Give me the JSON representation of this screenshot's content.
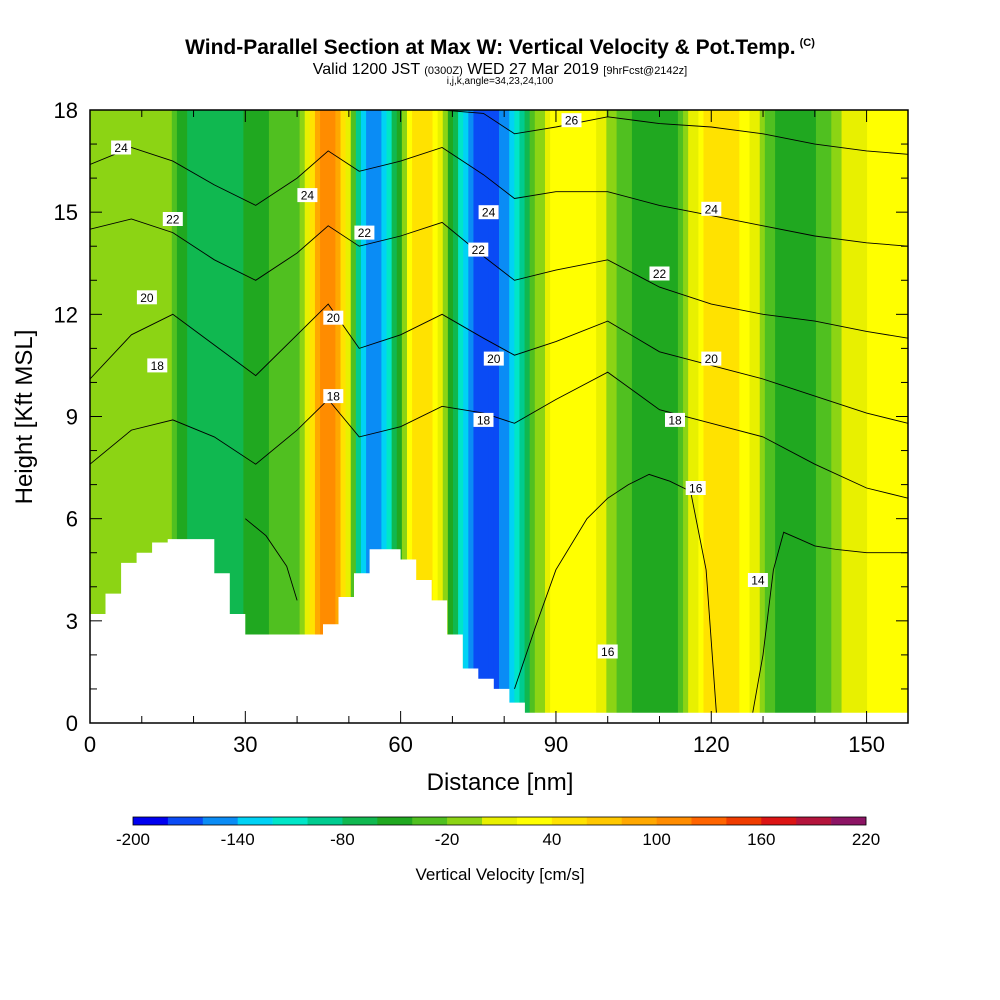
{
  "header": {
    "title": "Wind-Parallel Section at Max W: Vertical Velocity & Pot.Temp.",
    "title_tag": "(C)",
    "subtitle_valid": "Valid 1200 JST",
    "subtitle_utc": "(0300Z)",
    "subtitle_date": "WED 27 Mar 2019",
    "subtitle_fcst": "[9hrFcst@2142z]",
    "params": "i,j,k,angle=34,23,24,100"
  },
  "chart_data": {
    "type": "heatmap",
    "xlabel": "Distance [nm]",
    "ylabel": "Height [Kft MSL]",
    "xlim": [
      0,
      158
    ],
    "ylim": [
      0,
      18
    ],
    "xticks": [
      "0",
      "30",
      "60",
      "90",
      "120",
      "150"
    ],
    "yticks": [
      "0",
      "3",
      "6",
      "9",
      "12",
      "15",
      "18"
    ],
    "colorbar": {
      "label": "Vertical Velocity [cm/s]",
      "tick_labels": [
        "-200",
        "-140",
        "-80",
        "-20",
        "40",
        "100",
        "160",
        "220"
      ],
      "levels": [
        -200,
        -180,
        -160,
        -140,
        -120,
        -100,
        -80,
        -60,
        -40,
        -20,
        0,
        20,
        40,
        60,
        80,
        100,
        120,
        140,
        160,
        180,
        200,
        220
      ],
      "colors": [
        "#0000f0",
        "#0a4bf5",
        "#0a8cf5",
        "#00d2f5",
        "#00e6c8",
        "#00cc90",
        "#10b850",
        "#20a820",
        "#50c020",
        "#8cd414",
        "#e8f000",
        "#ffff00",
        "#ffe200",
        "#ffc800",
        "#ffa800",
        "#ff8c00",
        "#ff6400",
        "#f03c00",
        "#dc1414",
        "#b4143c",
        "#8c1464"
      ]
    },
    "velocity_bands": [
      {
        "x": 3,
        "w": -20
      },
      {
        "x": 12,
        "w": 0
      },
      {
        "x": 22,
        "w": -80
      },
      {
        "x": 30,
        "w": -60
      },
      {
        "x": 40,
        "w": -20
      },
      {
        "x": 46,
        "w": 120
      },
      {
        "x": 55,
        "w": -160
      },
      {
        "x": 64,
        "w": 60
      },
      {
        "x": 76,
        "w": -180
      },
      {
        "x": 92,
        "w": 40
      },
      {
        "x": 110,
        "w": -60
      },
      {
        "x": 122,
        "w": 60
      },
      {
        "x": 136,
        "w": -60
      },
      {
        "x": 150,
        "w": 20
      }
    ],
    "terrain": {
      "x": [
        0,
        3,
        6,
        9,
        12,
        15,
        18,
        21,
        24,
        27,
        30,
        33,
        36,
        39,
        42,
        45,
        48,
        51,
        54,
        57,
        60,
        63,
        66,
        69,
        72,
        75,
        78,
        81,
        84,
        87,
        90,
        95,
        100,
        110,
        120,
        130,
        140,
        150,
        158
      ],
      "height": [
        3.2,
        3.8,
        4.7,
        5.0,
        5.3,
        5.4,
        5.4,
        5.4,
        4.4,
        3.2,
        2.6,
        2.6,
        2.6,
        2.6,
        2.6,
        2.9,
        3.7,
        4.4,
        5.1,
        5.1,
        4.8,
        4.2,
        3.6,
        2.6,
        1.6,
        1.3,
        1.0,
        0.6,
        0.3,
        0.3,
        0.3,
        0.3,
        0.3,
        0.3,
        0.3,
        0.3,
        0.3,
        0.3,
        0.3
      ]
    },
    "theta_contours": [
      {
        "label": "14",
        "x": [
          128,
          130,
          132,
          134,
          137,
          140,
          144,
          150,
          158
        ],
        "height": [
          0.3,
          2.0,
          4.5,
          5.6,
          5.4,
          5.2,
          5.1,
          5.0,
          5.0
        ]
      },
      {
        "label": "16",
        "x": [
          82,
          86,
          90,
          96,
          100,
          104,
          108,
          112,
          116,
          119,
          121
        ],
        "height": [
          1.0,
          2.8,
          4.5,
          6.0,
          6.6,
          7.0,
          7.3,
          7.1,
          6.8,
          4.5,
          0.3
        ]
      },
      {
        "label": "16",
        "x": [
          30,
          34,
          38,
          40
        ],
        "height": [
          6.0,
          5.5,
          4.6,
          3.6
        ]
      },
      {
        "label": "18",
        "x": [
          0,
          8,
          16,
          24,
          32,
          40,
          46,
          52,
          60,
          68,
          76,
          82,
          90,
          100,
          110,
          120,
          130,
          140,
          150,
          158
        ],
        "height": [
          7.6,
          8.6,
          8.9,
          8.4,
          7.6,
          8.6,
          9.5,
          8.4,
          8.7,
          9.3,
          9.1,
          8.8,
          9.5,
          10.3,
          9.2,
          8.8,
          8.4,
          7.6,
          6.9,
          6.6
        ]
      },
      {
        "label": "20",
        "x": [
          0,
          8,
          16,
          24,
          32,
          40,
          46,
          52,
          60,
          68,
          76,
          82,
          90,
          100,
          110,
          120,
          130,
          140,
          150,
          158
        ],
        "height": [
          10.1,
          11.4,
          12.0,
          11.1,
          10.2,
          11.4,
          12.3,
          11.0,
          11.4,
          12.0,
          11.3,
          10.8,
          11.2,
          11.8,
          10.9,
          10.5,
          10.1,
          9.6,
          9.1,
          8.8
        ]
      },
      {
        "label": "22",
        "x": [
          0,
          8,
          16,
          24,
          32,
          40,
          46,
          52,
          60,
          68,
          76,
          82,
          90,
          100,
          110,
          120,
          130,
          140,
          150,
          158
        ],
        "height": [
          14.5,
          14.8,
          14.4,
          13.6,
          13.0,
          13.8,
          14.6,
          14.0,
          14.3,
          14.7,
          13.7,
          13.0,
          13.3,
          13.6,
          12.8,
          12.3,
          12.0,
          11.8,
          11.5,
          11.3
        ]
      },
      {
        "label": "24",
        "x": [
          0,
          8,
          16,
          24,
          32,
          40,
          46,
          52,
          60,
          68,
          76,
          82,
          90,
          100,
          110,
          120,
          130,
          140,
          150,
          158
        ],
        "height": [
          16.4,
          16.9,
          16.5,
          15.8,
          15.2,
          16.0,
          16.8,
          16.2,
          16.5,
          16.9,
          16.1,
          15.4,
          15.6,
          15.6,
          15.2,
          14.9,
          14.6,
          14.3,
          14.1,
          14.0
        ]
      },
      {
        "label": "26",
        "x": [
          60,
          68,
          76,
          82,
          90,
          100,
          110,
          120,
          130,
          140,
          150,
          158
        ],
        "height": [
          18.0,
          18.0,
          17.9,
          17.3,
          17.5,
          17.8,
          17.6,
          17.5,
          17.3,
          17.0,
          16.8,
          16.7
        ]
      }
    ],
    "contour_labels": [
      {
        "text": "24",
        "x": 6,
        "y": 16.9
      },
      {
        "text": "22",
        "x": 16,
        "y": 14.8
      },
      {
        "text": "20",
        "x": 11,
        "y": 12.5
      },
      {
        "text": "18",
        "x": 13,
        "y": 10.5
      },
      {
        "text": "24",
        "x": 42,
        "y": 15.5
      },
      {
        "text": "22",
        "x": 53,
        "y": 14.4
      },
      {
        "text": "20",
        "x": 47,
        "y": 11.9
      },
      {
        "text": "18",
        "x": 47,
        "y": 9.6
      },
      {
        "text": "26",
        "x": 93,
        "y": 17.7
      },
      {
        "text": "24",
        "x": 77,
        "y": 15.0
      },
      {
        "text": "22",
        "x": 75,
        "y": 13.9
      },
      {
        "text": "20",
        "x": 78,
        "y": 10.7
      },
      {
        "text": "18",
        "x": 76,
        "y": 8.9
      },
      {
        "text": "24",
        "x": 120,
        "y": 15.1
      },
      {
        "text": "22",
        "x": 110,
        "y": 13.2
      },
      {
        "text": "20",
        "x": 120,
        "y": 10.7
      },
      {
        "text": "18",
        "x": 113,
        "y": 8.9
      },
      {
        "text": "16",
        "x": 117,
        "y": 6.9
      },
      {
        "text": "14",
        "x": 129,
        "y": 4.2
      },
      {
        "text": "16",
        "x": 100,
        "y": 2.1
      }
    ]
  }
}
